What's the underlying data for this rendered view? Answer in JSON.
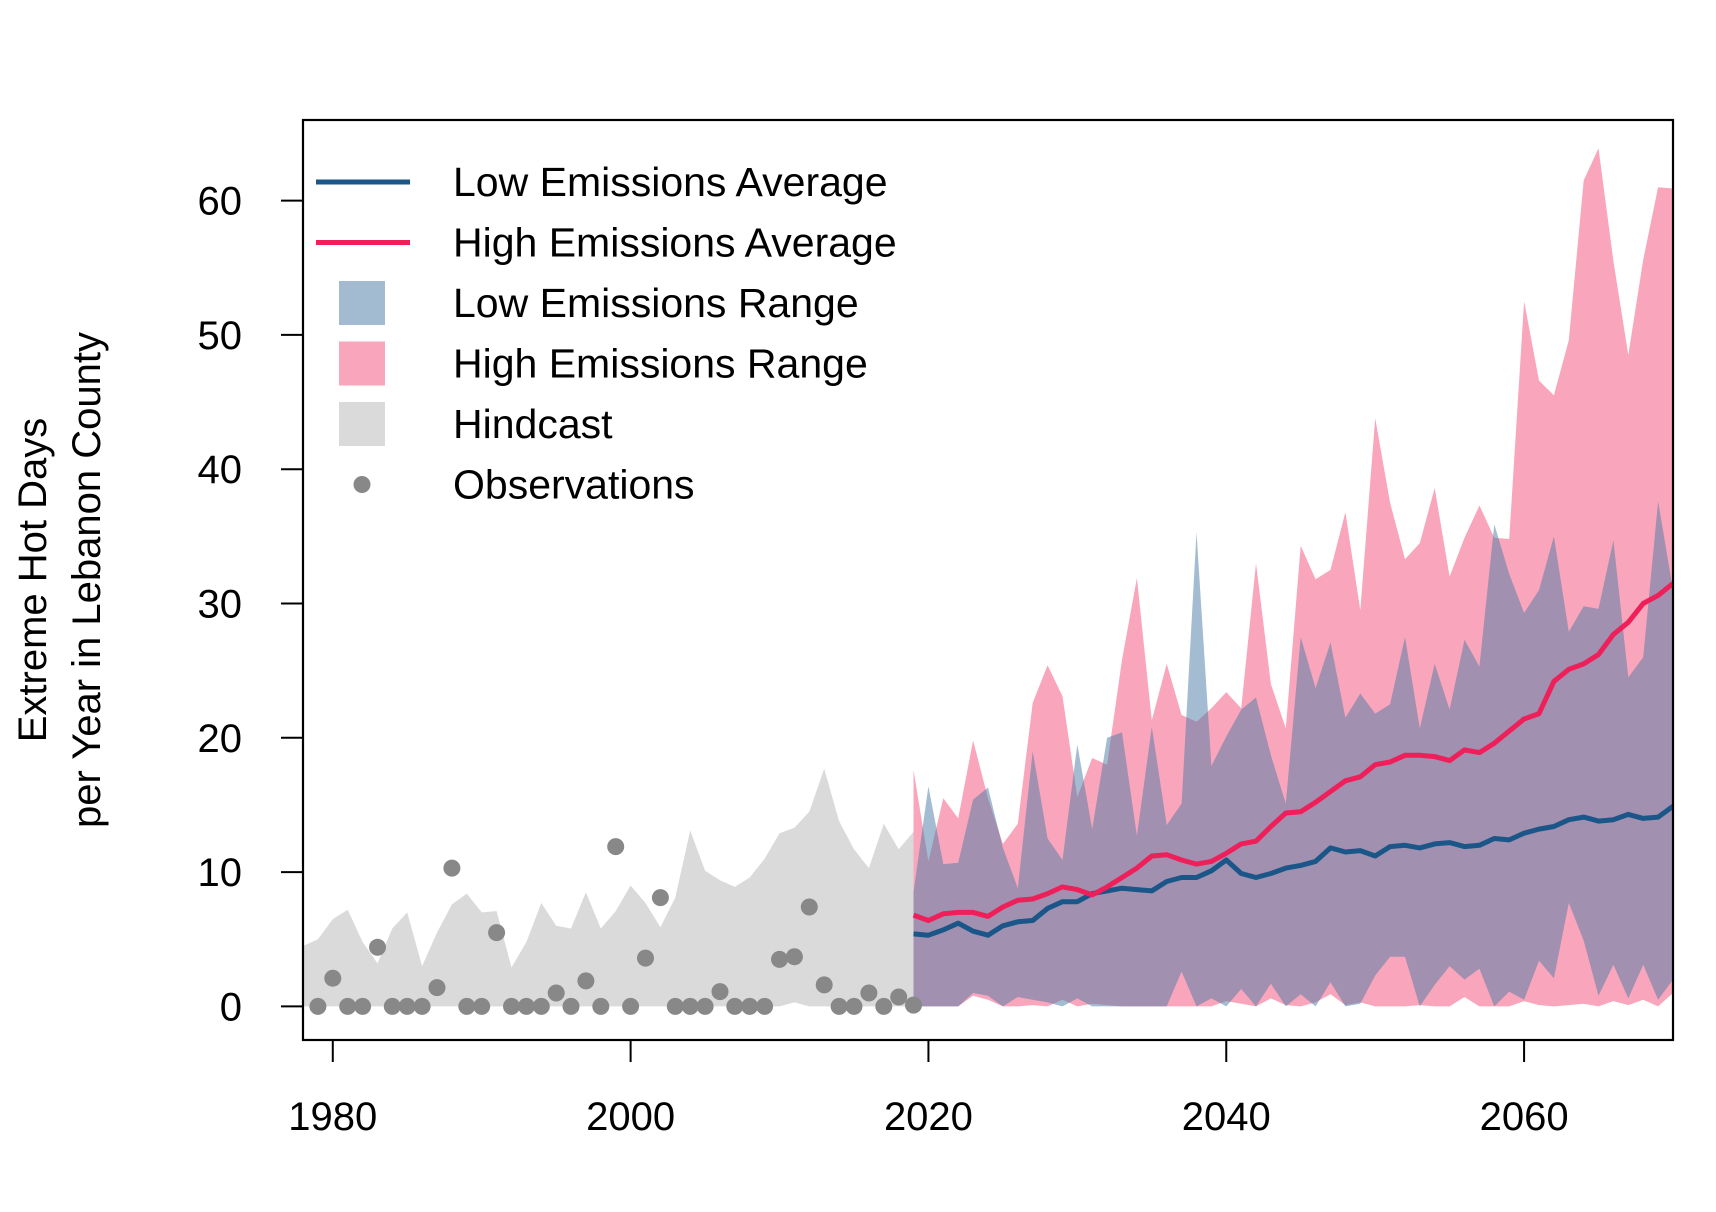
{
  "chart_data": {
    "type": "area",
    "title": "",
    "xlabel": "",
    "ylabel_lines": [
      "Extreme Hot Days",
      "per Year in Lebanon County"
    ],
    "xlim": [
      1978,
      2070
    ],
    "ylim": [
      -2.5,
      66
    ],
    "x_ticks": [
      1980,
      2000,
      2020,
      2040,
      2060
    ],
    "y_ticks": [
      0,
      10,
      20,
      30,
      40,
      50,
      60
    ],
    "grid": false,
    "legend_position": "top-left",
    "legend": [
      {
        "label": "Low Emissions Average",
        "kind": "line",
        "color": "#1b5689"
      },
      {
        "label": "High Emissions Average",
        "kind": "line",
        "color": "#ef1f5a"
      },
      {
        "label": "Low Emissions Range",
        "kind": "box",
        "color": "#a2bbd0"
      },
      {
        "label": "High Emissions Range",
        "kind": "box",
        "color": "#f9a6bc"
      },
      {
        "label": "Hindcast",
        "kind": "box",
        "color": "#dadada"
      },
      {
        "label": "Observations",
        "kind": "point",
        "color": "#888888"
      }
    ],
    "hindcast": {
      "name": "Hindcast",
      "color": "#dadada",
      "x": [
        1978,
        1979,
        1980,
        1981,
        1982,
        1983,
        1984,
        1985,
        1986,
        1987,
        1988,
        1989,
        1990,
        1991,
        1992,
        1993,
        1994,
        1995,
        1996,
        1997,
        1998,
        1999,
        2000,
        2001,
        2002,
        2003,
        2004,
        2005,
        2006,
        2007,
        2008,
        2009,
        2010,
        2011,
        2012,
        2013,
        2014,
        2015,
        2016,
        2017,
        2018,
        2019
      ],
      "upper": [
        4.5,
        5,
        6.5,
        7.2,
        4.8,
        3.2,
        5.8,
        7,
        3,
        5.5,
        7.6,
        8.4,
        7,
        7.1,
        2.9,
        4.8,
        7.7,
        6,
        5.8,
        8.5,
        5.8,
        7.1,
        9,
        7.7,
        5.9,
        8.1,
        13.1,
        10.1,
        9.4,
        8.9,
        9.6,
        11,
        12.9,
        13.3,
        14.5,
        17.7,
        13.8,
        11.7,
        10.3,
        13.6,
        11.7,
        13
      ],
      "lower": [
        0,
        0,
        0,
        0,
        0,
        0,
        0,
        0,
        0,
        0,
        0,
        0,
        0,
        0,
        0,
        0,
        0,
        0,
        0,
        0,
        0,
        0,
        0,
        0,
        0,
        0,
        0,
        0,
        0,
        0,
        0,
        0,
        0,
        0.3,
        0,
        0,
        0,
        0,
        0,
        0,
        0,
        0
      ]
    },
    "observations": {
      "name": "Observations",
      "color": "#888888",
      "x": [
        1979,
        1980,
        1981,
        1982,
        1983,
        1984,
        1985,
        1986,
        1987,
        1988,
        1989,
        1990,
        1991,
        1992,
        1993,
        1994,
        1995,
        1996,
        1997,
        1998,
        1999,
        2000,
        2001,
        2002,
        2003,
        2004,
        2005,
        2006,
        2007,
        2008,
        2009,
        2010,
        2011,
        2012,
        2013,
        2014,
        2015,
        2016,
        2017,
        2018,
        2019
      ],
      "y": [
        0,
        2.1,
        0,
        0,
        4.4,
        0,
        0,
        0,
        1.4,
        10.3,
        0,
        0,
        5.5,
        0,
        0,
        0,
        1,
        0,
        1.9,
        0,
        11.9,
        0,
        3.6,
        8.1,
        0,
        0,
        0,
        1.1,
        0,
        0,
        0,
        3.5,
        3.7,
        7.4,
        1.6,
        0,
        0,
        1,
        0,
        0.7,
        0.1
      ]
    },
    "ranges": [
      {
        "name": "High Emissions Range",
        "color": "#f9a6bc",
        "x": [
          2019,
          2020,
          2021,
          2022,
          2023,
          2024,
          2025,
          2026,
          2027,
          2028,
          2029,
          2030,
          2031,
          2032,
          2033,
          2034,
          2035,
          2036,
          2037,
          2038,
          2039,
          2040,
          2041,
          2042,
          2043,
          2044,
          2045,
          2046,
          2047,
          2048,
          2049,
          2050,
          2051,
          2052,
          2053,
          2054,
          2055,
          2056,
          2057,
          2058,
          2059,
          2060,
          2061,
          2062,
          2063,
          2064,
          2065,
          2066,
          2067,
          2068,
          2069,
          2070
        ],
        "upper": [
          17.6,
          10.8,
          15.5,
          14,
          19.8,
          15.5,
          12.1,
          13.6,
          22.6,
          25.4,
          23.1,
          15.6,
          18.5,
          18,
          25.8,
          31.9,
          21.3,
          25.5,
          21.7,
          21.2,
          22.2,
          23.4,
          22.2,
          33,
          24,
          20.7,
          34.3,
          31.8,
          32.5,
          36.8,
          29.5,
          43.8,
          37.5,
          33.3,
          34.5,
          38.6,
          32,
          34.9,
          37.3,
          34.9,
          34.8,
          52.5,
          46.6,
          45.5,
          49.6,
          61.5,
          63.9,
          55.5,
          48.5,
          55.6,
          61,
          60.9
        ],
        "lower": [
          0,
          0,
          0,
          0,
          0.8,
          0.5,
          0,
          0,
          0.1,
          0,
          0.5,
          0,
          0.2,
          0.1,
          0,
          0,
          0,
          0,
          0,
          0,
          0,
          0.4,
          0.2,
          0,
          0.6,
          0.1,
          0,
          0.3,
          0.9,
          0.1,
          0.3,
          0,
          0,
          0,
          0.1,
          0,
          0,
          0.7,
          0,
          0,
          0,
          0.4,
          0.1,
          0,
          0.1,
          0.2,
          0,
          0.4,
          0.1,
          0.5,
          0,
          1
        ]
      },
      {
        "name": "Low Emissions Range",
        "color": "#a2bbd0",
        "x": [
          2019,
          2020,
          2021,
          2022,
          2023,
          2024,
          2025,
          2026,
          2027,
          2028,
          2029,
          2030,
          2031,
          2032,
          2033,
          2034,
          2035,
          2036,
          2037,
          2038,
          2039,
          2040,
          2041,
          2042,
          2043,
          2044,
          2045,
          2046,
          2047,
          2048,
          2049,
          2050,
          2051,
          2052,
          2053,
          2054,
          2055,
          2056,
          2057,
          2058,
          2059,
          2060,
          2061,
          2062,
          2063,
          2064,
          2065,
          2066,
          2067,
          2068,
          2069,
          2070
        ],
        "upper": [
          8.5,
          16.4,
          10.6,
          10.7,
          15.4,
          16.3,
          11.8,
          8.8,
          19,
          12.5,
          10.9,
          19.5,
          13.2,
          20,
          20.4,
          12.7,
          20.8,
          13.5,
          15.1,
          35.3,
          17.9,
          20.1,
          22.1,
          23,
          18.7,
          15.1,
          27.5,
          23.7,
          27.1,
          21.5,
          23.3,
          21.8,
          22.5,
          27.5,
          20.7,
          25.5,
          22.1,
          27.3,
          25.3,
          35.9,
          32.2,
          29.3,
          31,
          35,
          27.9,
          29.8,
          29.6,
          34.7,
          24.5,
          26,
          37.6,
          31
        ],
        "lower": [
          0,
          0,
          0,
          0,
          1,
          0.8,
          0,
          0.7,
          0.5,
          0.3,
          0,
          0.6,
          0,
          0,
          0,
          0,
          0,
          0,
          2.6,
          0,
          0.6,
          0,
          1.3,
          0,
          1.7,
          0,
          0.9,
          0,
          1.8,
          0,
          0.2,
          2.3,
          3.7,
          3.7,
          0,
          1.6,
          3,
          2,
          2.8,
          0,
          1.1,
          0.5,
          3.4,
          2.1,
          7.7,
          4.9,
          0.8,
          3.1,
          0.6,
          3.1,
          0.5,
          2
        ]
      }
    ],
    "series": [
      {
        "name": "Low Emissions Average",
        "color": "#1b5689",
        "x": [
          2019,
          2020,
          2021,
          2022,
          2023,
          2024,
          2025,
          2026,
          2027,
          2028,
          2029,
          2030,
          2031,
          2032,
          2033,
          2034,
          2035,
          2036,
          2037,
          2038,
          2039,
          2040,
          2041,
          2042,
          2043,
          2044,
          2045,
          2046,
          2047,
          2048,
          2049,
          2050,
          2051,
          2052,
          2053,
          2054,
          2055,
          2056,
          2057,
          2058,
          2059,
          2060,
          2061,
          2062,
          2063,
          2064,
          2065,
          2066,
          2067,
          2068,
          2069,
          2070
        ],
        "values": [
          5.4,
          5.3,
          5.7,
          6.2,
          5.6,
          5.3,
          6,
          6.3,
          6.4,
          7.3,
          7.8,
          7.8,
          8.4,
          8.6,
          8.8,
          8.7,
          8.6,
          9.3,
          9.6,
          9.6,
          10.1,
          10.9,
          9.9,
          9.6,
          9.9,
          10.3,
          10.5,
          10.8,
          11.8,
          11.5,
          11.6,
          11.2,
          11.9,
          12,
          11.8,
          12.1,
          12.2,
          11.9,
          12,
          12.5,
          12.4,
          12.9,
          13.2,
          13.4,
          13.9,
          14.1,
          13.8,
          13.9,
          14.3,
          14,
          14.1,
          14.9
        ]
      },
      {
        "name": "High Emissions Average",
        "color": "#ef1f5a",
        "x": [
          2019,
          2020,
          2021,
          2022,
          2023,
          2024,
          2025,
          2026,
          2027,
          2028,
          2029,
          2030,
          2031,
          2032,
          2033,
          2034,
          2035,
          2036,
          2037,
          2038,
          2039,
          2040,
          2041,
          2042,
          2043,
          2044,
          2045,
          2046,
          2047,
          2048,
          2049,
          2050,
          2051,
          2052,
          2053,
          2054,
          2055,
          2056,
          2057,
          2058,
          2059,
          2060,
          2061,
          2062,
          2063,
          2064,
          2065,
          2066,
          2067,
          2068,
          2069,
          2070
        ],
        "values": [
          6.8,
          6.4,
          6.9,
          7,
          7,
          6.7,
          7.4,
          7.9,
          8,
          8.4,
          8.9,
          8.7,
          8.3,
          8.9,
          9.6,
          10.3,
          11.2,
          11.3,
          10.9,
          10.6,
          10.8,
          11.4,
          12.1,
          12.3,
          13.4,
          14.4,
          14.5,
          15.2,
          16,
          16.8,
          17.1,
          18,
          18.2,
          18.7,
          18.7,
          18.6,
          18.3,
          19.1,
          18.9,
          19.6,
          20.5,
          21.4,
          21.8,
          24.2,
          25.1,
          25.5,
          26.2,
          27.7,
          28.6,
          30,
          30.6,
          31.5
        ]
      }
    ]
  }
}
